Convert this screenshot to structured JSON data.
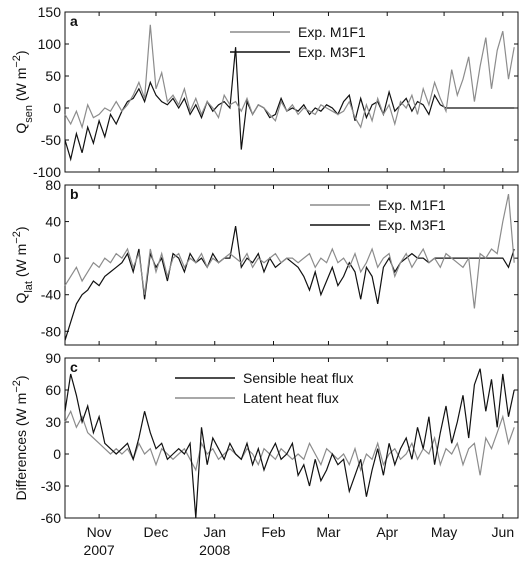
{
  "chart_data": [
    {
      "type": "line",
      "panel_label": "a",
      "ylabel_parts": [
        {
          "text": "Q"
        },
        {
          "text": "sen",
          "sub": true
        },
        {
          "text": " (W m"
        },
        {
          "text": "−2",
          "sup": true
        },
        {
          "text": ")"
        }
      ],
      "x": [
        0,
        3,
        6,
        9,
        12,
        15,
        18,
        21,
        24,
        27,
        30,
        33,
        36,
        39,
        42,
        45,
        48,
        51,
        54,
        57,
        60,
        63,
        66,
        69,
        72,
        75,
        78,
        81,
        84,
        87,
        90,
        93,
        96,
        99,
        102,
        105,
        108,
        111,
        114,
        117,
        120,
        123,
        126,
        129,
        132,
        135,
        138,
        141,
        144,
        147,
        150,
        153,
        156,
        159,
        162,
        165,
        168,
        171,
        174,
        177,
        180,
        183,
        186,
        189,
        192,
        195,
        198,
        201,
        204,
        207,
        210,
        213,
        216,
        219,
        222,
        225,
        228,
        231,
        234,
        237
      ],
      "xlim": [
        0,
        239
      ],
      "ylim": [
        -100,
        150
      ],
      "yticks": [
        -100,
        -50,
        0,
        50,
        100,
        150
      ],
      "legend": "upper center",
      "series": [
        {
          "name": "Exp. M1F1",
          "color": "#8c8c8c",
          "values": [
            -10,
            -25,
            -5,
            -30,
            5,
            -15,
            -10,
            0,
            -5,
            10,
            -5,
            5,
            20,
            40,
            15,
            130,
            30,
            55,
            10,
            20,
            5,
            30,
            -5,
            15,
            -10,
            10,
            0,
            -15,
            20,
            5,
            10,
            -5,
            15,
            -10,
            5,
            0,
            -10,
            -20,
            10,
            -5,
            5,
            -10,
            0,
            -5,
            -10,
            5,
            0,
            -5,
            -10,
            -5,
            10,
            -15,
            -30,
            5,
            -20,
            15,
            -10,
            5,
            -25,
            10,
            0,
            20,
            -10,
            30,
            5,
            40,
            15,
            -5,
            60,
            20,
            45,
            80,
            10,
            65,
            110,
            30,
            90,
            120,
            45,
            95
          ]
        },
        {
          "name": "Exp. M3F1",
          "color": "#111111",
          "values": [
            -50,
            -80,
            -40,
            -70,
            -30,
            -55,
            -20,
            -45,
            -10,
            -25,
            -5,
            10,
            15,
            30,
            10,
            40,
            20,
            10,
            5,
            15,
            0,
            15,
            -10,
            5,
            -15,
            10,
            -5,
            5,
            10,
            0,
            95,
            -65,
            10,
            -10,
            5,
            0,
            -15,
            -10,
            15,
            -5,
            0,
            -5,
            5,
            -10,
            0,
            -5,
            5,
            0,
            -10,
            10,
            20,
            -20,
            15,
            -15,
            5,
            10,
            -10,
            25,
            -5,
            5,
            15,
            -5,
            10,
            5,
            -10,
            20,
            5,
            0,
            0,
            0,
            0,
            0,
            0,
            0,
            0,
            0,
            0,
            0,
            0,
            0
          ]
        }
      ]
    },
    {
      "type": "line",
      "panel_label": "b",
      "ylabel_parts": [
        {
          "text": "Q"
        },
        {
          "text": "lat",
          "sub": true
        },
        {
          "text": " (W m"
        },
        {
          "text": "−2",
          "sup": true
        },
        {
          "text": ")"
        }
      ],
      "x": [
        0,
        3,
        6,
        9,
        12,
        15,
        18,
        21,
        24,
        27,
        30,
        33,
        36,
        39,
        42,
        45,
        48,
        51,
        54,
        57,
        60,
        63,
        66,
        69,
        72,
        75,
        78,
        81,
        84,
        87,
        90,
        93,
        96,
        99,
        102,
        105,
        108,
        111,
        114,
        117,
        120,
        123,
        126,
        129,
        132,
        135,
        138,
        141,
        144,
        147,
        150,
        153,
        156,
        159,
        162,
        165,
        168,
        171,
        174,
        177,
        180,
        183,
        186,
        189,
        192,
        195,
        198,
        201,
        204,
        207,
        210,
        213,
        216,
        219,
        222,
        225,
        228,
        231,
        234,
        237
      ],
      "xlim": [
        0,
        239
      ],
      "ylim": [
        -95,
        80
      ],
      "yticks": [
        -80,
        -40,
        0,
        40,
        80
      ],
      "legend": "upper right",
      "series": [
        {
          "name": "Exp. M1F1",
          "color": "#8c8c8c",
          "values": [
            -30,
            -20,
            -10,
            -25,
            -15,
            -5,
            -10,
            0,
            -5,
            5,
            0,
            10,
            -10,
            5,
            -40,
            10,
            -15,
            5,
            -20,
            0,
            5,
            -10,
            0,
            -5,
            5,
            -10,
            0,
            -5,
            0,
            5,
            0,
            -5,
            5,
            -10,
            0,
            -5,
            0,
            5,
            -5,
            0,
            0,
            -5,
            0,
            5,
            -10,
            0,
            -5,
            10,
            -5,
            0,
            -10,
            5,
            -15,
            -5,
            10,
            -10,
            0,
            5,
            -20,
            -5,
            5,
            -10,
            0,
            10,
            -5,
            0,
            -10,
            5,
            0,
            -5,
            -10,
            0,
            -55,
            5,
            0,
            10,
            5,
            40,
            70,
            -5
          ]
        },
        {
          "name": "Exp. M3F1",
          "color": "#111111",
          "values": [
            -90,
            -70,
            -50,
            -40,
            -35,
            -25,
            -30,
            -20,
            -15,
            -10,
            -5,
            5,
            -15,
            10,
            -45,
            5,
            -10,
            0,
            -25,
            5,
            0,
            -15,
            5,
            -5,
            0,
            -10,
            5,
            -5,
            0,
            0,
            35,
            -10,
            0,
            -5,
            5,
            -15,
            0,
            -10,
            -5,
            0,
            -5,
            -10,
            -20,
            -35,
            -15,
            -40,
            -25,
            -10,
            -30,
            -20,
            -5,
            -15,
            -45,
            -10,
            -20,
            -50,
            -10,
            0,
            -15,
            -5,
            0,
            5,
            0,
            0,
            -5,
            0,
            0,
            0,
            0,
            0,
            0,
            0,
            0,
            0,
            0,
            0,
            0,
            0,
            -10,
            10
          ]
        }
      ]
    },
    {
      "type": "line",
      "panel_label": "c",
      "ylabel_parts": [
        {
          "text": "Differences (W m"
        },
        {
          "text": "−2",
          "sup": true
        },
        {
          "text": ")"
        }
      ],
      "x": [
        0,
        3,
        6,
        9,
        12,
        15,
        18,
        21,
        24,
        27,
        30,
        33,
        36,
        39,
        42,
        45,
        48,
        51,
        54,
        57,
        60,
        63,
        66,
        69,
        72,
        75,
        78,
        81,
        84,
        87,
        90,
        93,
        96,
        99,
        102,
        105,
        108,
        111,
        114,
        117,
        120,
        123,
        126,
        129,
        132,
        135,
        138,
        141,
        144,
        147,
        150,
        153,
        156,
        159,
        162,
        165,
        168,
        171,
        174,
        177,
        180,
        183,
        186,
        189,
        192,
        195,
        198,
        201,
        204,
        207,
        210,
        213,
        216,
        219,
        222,
        225,
        228,
        231,
        234,
        237
      ],
      "xlim": [
        0,
        239
      ],
      "ylim": [
        -60,
        90
      ],
      "yticks": [
        -60,
        -30,
        0,
        30,
        60,
        90
      ],
      "legend": "upper left",
      "xticks": [
        {
          "value": 18,
          "label": "Nov"
        },
        {
          "value": 48,
          "label": "Dec"
        },
        {
          "value": 79,
          "label": "Jan"
        },
        {
          "value": 110,
          "label": "Feb"
        },
        {
          "value": 139,
          "label": "Mar"
        },
        {
          "value": 170,
          "label": "Apr"
        },
        {
          "value": 200,
          "label": "May"
        },
        {
          "value": 231,
          "label": "Jun"
        }
      ],
      "xtick_years": [
        {
          "value": 18,
          "label": "2007"
        },
        {
          "value": 79,
          "label": "2008"
        }
      ],
      "series": [
        {
          "name": "Sensible heat flux",
          "color": "#111111",
          "values": [
            40,
            75,
            55,
            30,
            45,
            20,
            35,
            10,
            5,
            0,
            5,
            10,
            -5,
            15,
            40,
            20,
            5,
            10,
            -5,
            0,
            5,
            0,
            10,
            -60,
            25,
            -10,
            15,
            5,
            -5,
            10,
            0,
            -5,
            10,
            -10,
            5,
            -15,
            0,
            10,
            -5,
            0,
            10,
            -20,
            -10,
            -30,
            -5,
            -25,
            -15,
            0,
            -10,
            -5,
            -35,
            -20,
            -5,
            -40,
            -15,
            5,
            -20,
            10,
            -10,
            5,
            15,
            -5,
            25,
            5,
            35,
            -10,
            20,
            45,
            10,
            30,
            55,
            15,
            65,
            80,
            40,
            70,
            25,
            75,
            35,
            60
          ]
        },
        {
          "name": "Latent heat flux",
          "color": "#8c8c8c",
          "values": [
            30,
            40,
            25,
            35,
            20,
            15,
            10,
            5,
            0,
            5,
            0,
            5,
            -5,
            10,
            0,
            5,
            -10,
            5,
            0,
            -5,
            0,
            5,
            -5,
            -15,
            10,
            0,
            5,
            -5,
            0,
            5,
            0,
            -5,
            5,
            0,
            -10,
            5,
            0,
            -5,
            5,
            0,
            -5,
            0,
            -5,
            10,
            0,
            -10,
            5,
            0,
            -5,
            0,
            -10,
            5,
            -15,
            0,
            -5,
            10,
            -10,
            0,
            5,
            -5,
            0,
            10,
            -5,
            5,
            0,
            15,
            -10,
            5,
            0,
            10,
            -10,
            5,
            10,
            -20,
            15,
            5,
            20,
            35,
            10,
            25
          ]
        }
      ]
    }
  ]
}
